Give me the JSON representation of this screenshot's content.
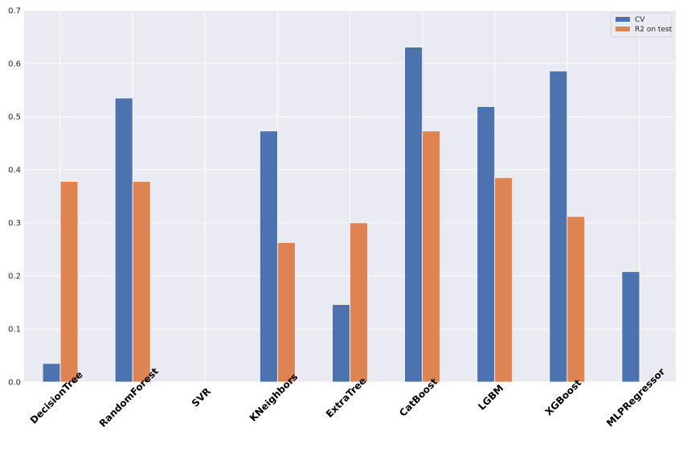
{
  "chart_data": {
    "type": "bar",
    "categories": [
      "DecisionTree",
      "RandomForest",
      "SVR",
      "KNeighbors",
      "ExtraTree",
      "CatBoost",
      "LGBM",
      "XGBoost",
      "MLPRegressor"
    ],
    "series": [
      {
        "name": "CV",
        "values": [
          0.035,
          0.535,
          0.0,
          0.473,
          0.146,
          0.631,
          0.519,
          0.586,
          0.208
        ],
        "color": "#4c72b0"
      },
      {
        "name": "R2 on test",
        "values": [
          0.378,
          0.378,
          0.0,
          0.263,
          0.3,
          0.473,
          0.385,
          0.312,
          0.0
        ],
        "color": "#dd8452"
      }
    ],
    "title": "",
    "xlabel": "",
    "ylabel": "",
    "ylim": [
      0,
      0.7
    ],
    "yticks": [
      "0.0",
      "0.1",
      "0.2",
      "0.3",
      "0.4",
      "0.5",
      "0.6",
      "0.7"
    ],
    "grid": true,
    "legend_position": "top-right",
    "style": {
      "background": "#eaeaf2",
      "grid_color": "#ffffff"
    }
  }
}
